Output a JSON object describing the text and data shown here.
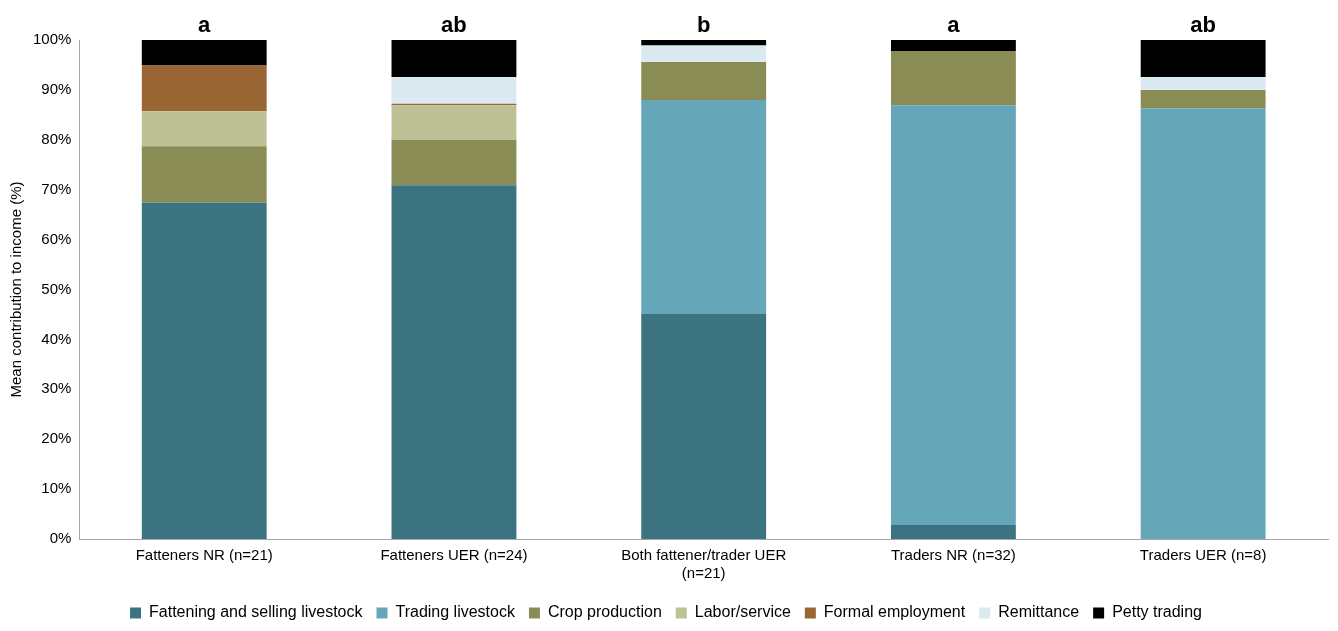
{
  "chart_data": {
    "type": "bar",
    "stacked": true,
    "ylabel": "Mean contribution to income (%)",
    "categories": [
      "Fatteners NR (n=21)",
      "Fatteners UER (n=24)",
      "Both fattener/trader UER (n=21)",
      "Traders NR (n=32)",
      "Traders UER (n=8)"
    ],
    "series": [
      {
        "name": "Fattening and selling livestock",
        "color": "#3c7381",
        "values": [
          67.4,
          70.9,
          45.1,
          2.8,
          0
        ]
      },
      {
        "name": "Trading livestock",
        "color": "#65a7b9",
        "values": [
          0,
          0,
          42.9,
          84.1,
          86.3
        ]
      },
      {
        "name": "Crop production",
        "color": "#8a8c55",
        "values": [
          11.3,
          9.1,
          7.6,
          10.9,
          3.7
        ]
      },
      {
        "name": "Labor/service",
        "color": "#bec096",
        "values": [
          7.0,
          6.9,
          0,
          0,
          0
        ]
      },
      {
        "name": "Formal employment",
        "color": "#996633",
        "values": [
          9.2,
          0.3,
          0,
          0,
          0
        ]
      },
      {
        "name": "Remittance",
        "color": "#dbeaf0",
        "values": [
          0,
          5.4,
          3.3,
          0,
          2.6
        ]
      },
      {
        "name": "Petty trading",
        "color": "#000000",
        "values": [
          5.1,
          7.4,
          1.1,
          2.2,
          7.4
        ]
      }
    ],
    "ylim": [
      0,
      100
    ],
    "yticks": [
      {
        "value": 0,
        "label": "0%"
      },
      {
        "value": 10,
        "label": "10%"
      },
      {
        "value": 20,
        "label": "20%"
      },
      {
        "value": 30,
        "label": "30%"
      },
      {
        "value": 40,
        "label": "40%"
      },
      {
        "value": 50,
        "label": "50%"
      },
      {
        "value": 60,
        "label": "60%"
      },
      {
        "value": 70,
        "label": "70%"
      },
      {
        "value": 80,
        "label": "80%"
      },
      {
        "value": 90,
        "label": "90%"
      },
      {
        "value": 100,
        "label": "100%"
      }
    ],
    "grid": false,
    "legend": "bottom",
    "annotations": [
      {
        "text": "a",
        "x": "Fatteners NR (n=21)",
        "y": 100
      },
      {
        "text": "ab",
        "x": "Fatteners UER (n=24)",
        "y": 100
      },
      {
        "text": "b",
        "x": "Both fattener/trader UER (n=21)",
        "y": 100
      },
      {
        "text": "a",
        "x": "Traders NR (n=32)",
        "y": 100
      },
      {
        "text": "ab",
        "x": "Traders UER (n=8)",
        "y": 100
      }
    ]
  }
}
